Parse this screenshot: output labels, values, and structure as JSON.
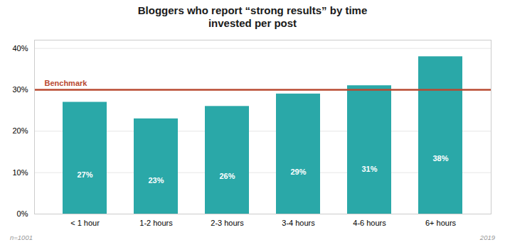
{
  "chart_data": {
    "type": "bar",
    "title": "Bloggers who report “strong results” by time\ninvested per post",
    "categories": [
      "< 1 hour",
      "1-2 hours",
      "2-3 hours",
      "3-4 hours",
      "4-6 hours",
      "6+ hours"
    ],
    "values": [
      27,
      23,
      26,
      29,
      31,
      38
    ],
    "value_labels": [
      "27%",
      "23%",
      "26%",
      "29%",
      "31%",
      "38%"
    ],
    "data_labels": true,
    "color": "#2aa8a8",
    "ylim": [
      0,
      42
    ],
    "yticks": [
      {
        "value": 0,
        "label": "0%"
      },
      {
        "value": 10,
        "label": "10%"
      },
      {
        "value": 20,
        "label": "20%"
      },
      {
        "value": 30,
        "label": "30%"
      },
      {
        "value": 40,
        "label": "40%"
      }
    ],
    "grid": true,
    "reference_lines": [
      {
        "value": 30,
        "label": "Benchmark",
        "color": "#b94a31"
      }
    ],
    "footnote_left": "n=1001",
    "footnote_right": "2019"
  }
}
